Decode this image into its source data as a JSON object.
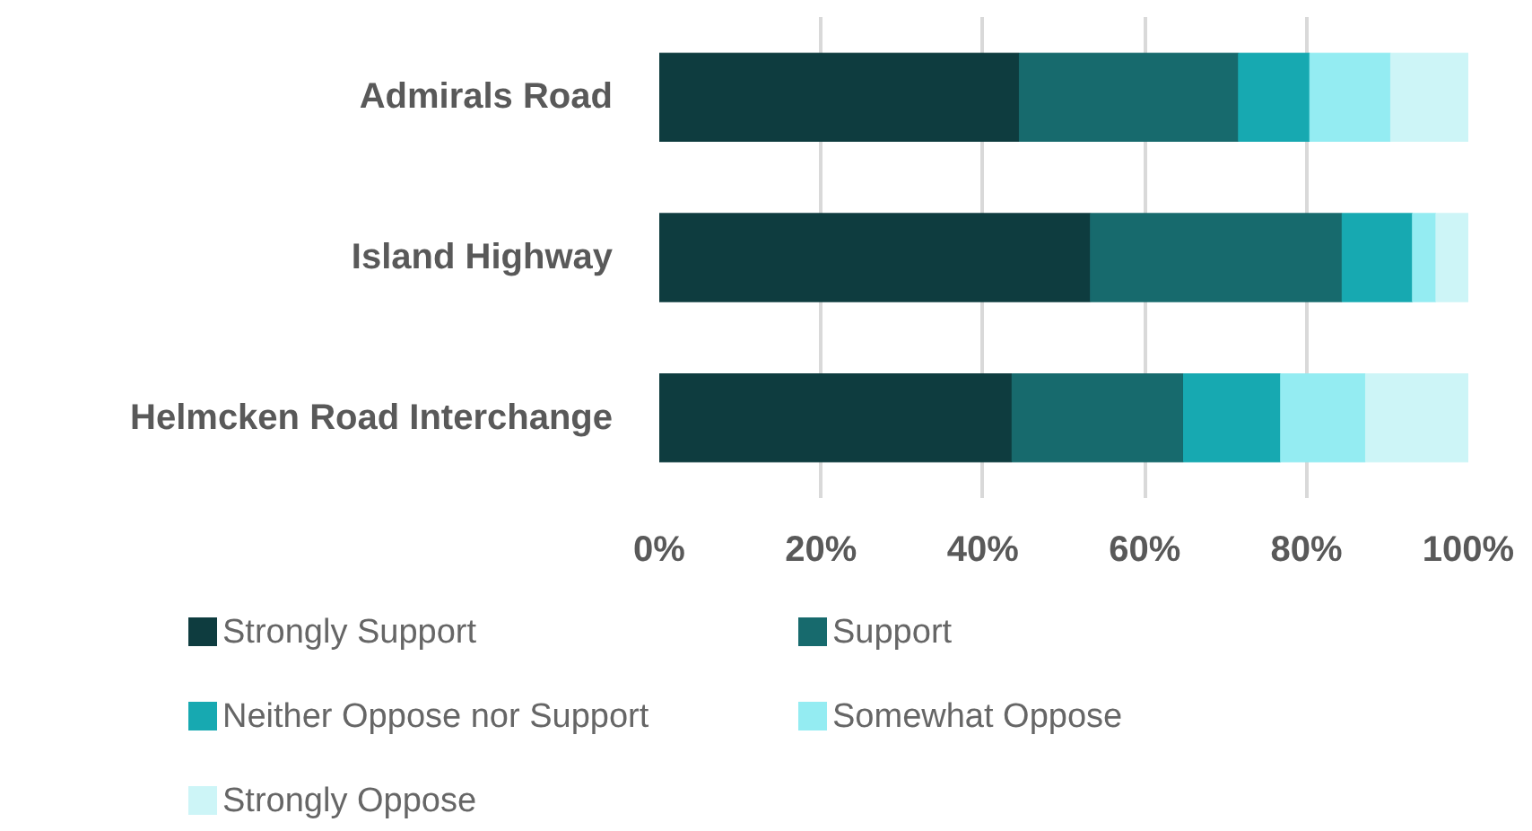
{
  "chart_data": {
    "type": "bar",
    "orientation": "horizontal",
    "stacked": true,
    "categories": [
      "Admirals Road",
      "Island Highway",
      "Helmcken Road Interchange"
    ],
    "series": [
      {
        "name": "Strongly Support",
        "color": "#0e3c3f",
        "values": [
          44.5,
          53.3,
          43.6
        ]
      },
      {
        "name": "Support",
        "color": "#176a6d",
        "values": [
          27.1,
          31.1,
          21.2
        ]
      },
      {
        "name": "Neither Oppose nor Support",
        "color": "#17a9b1",
        "values": [
          8.8,
          8.7,
          12.0
        ]
      },
      {
        "name": "Somewhat Oppose",
        "color": "#94ecf2",
        "values": [
          10.0,
          2.9,
          10.5
        ]
      },
      {
        "name": "Strongly Oppose",
        "color": "#cdf5f7",
        "values": [
          9.6,
          4.0,
          12.7
        ]
      }
    ],
    "xlim": [
      0,
      100
    ],
    "xticks": [
      {
        "value": 0,
        "label": "0%"
      },
      {
        "value": 20,
        "label": "20%"
      },
      {
        "value": 40,
        "label": "40%"
      },
      {
        "value": 60,
        "label": "60%"
      },
      {
        "value": 80,
        "label": "80%"
      },
      {
        "value": 100,
        "label": "100%"
      }
    ],
    "grid": "x",
    "legend": "bottom"
  }
}
